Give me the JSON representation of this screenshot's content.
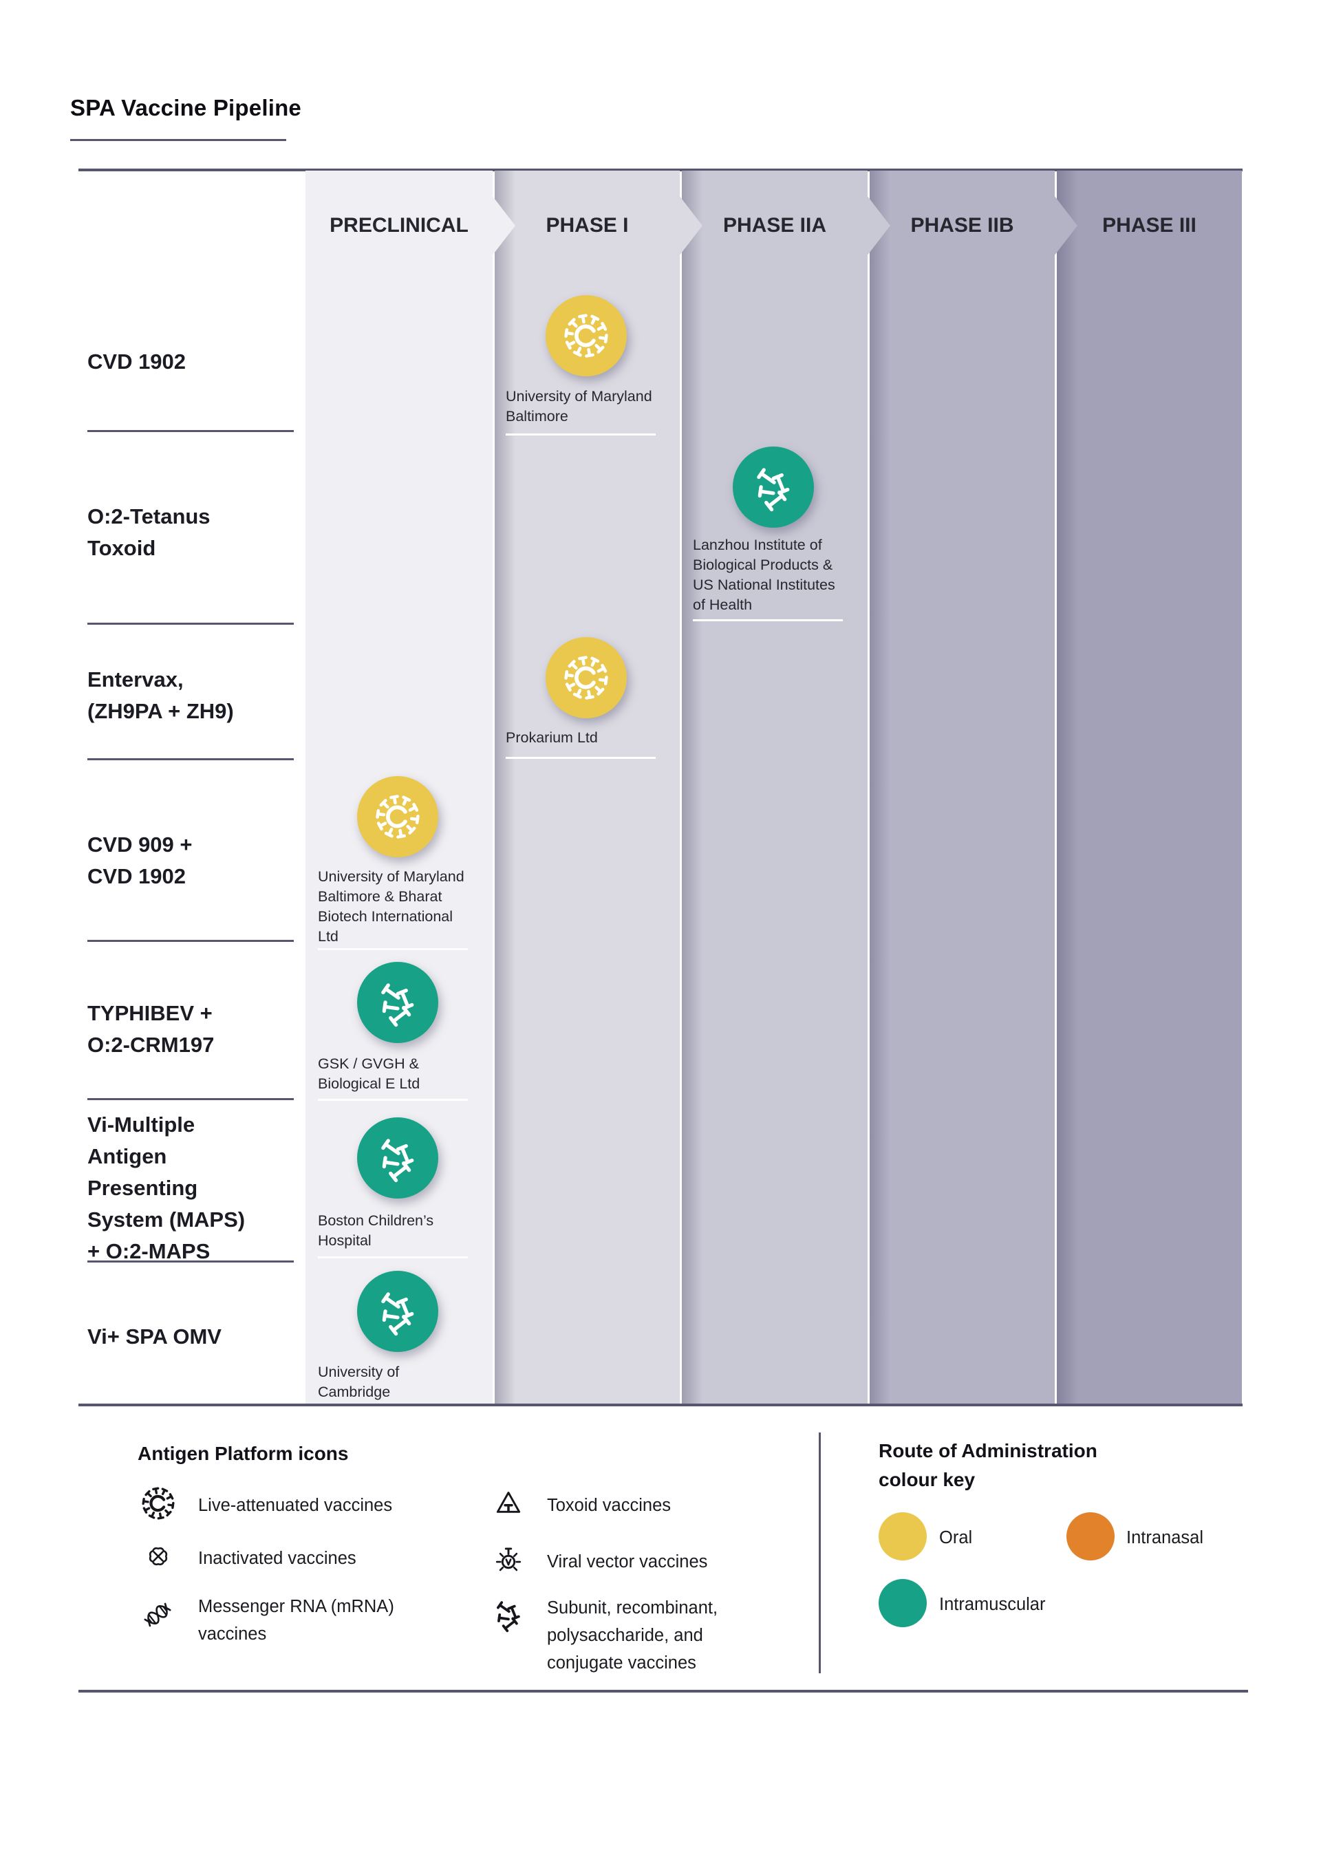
{
  "title": "SPA Vaccine Pipeline",
  "phases": [
    {
      "label": "PRECLINICAL",
      "color": "#F0EFF3"
    },
    {
      "label": "PHASE I",
      "color": "#DBDAE2"
    },
    {
      "label": "PHASE IIA",
      "color": "#C9C8D5"
    },
    {
      "label": "PHASE IIB",
      "color": "#B4B3C6"
    },
    {
      "label": "PHASE III",
      "color": "#A3A1B8"
    }
  ],
  "rows": [
    {
      "label": "CVD 1902",
      "phase": "PHASE I",
      "org": "University of Maryland\nBaltimore",
      "icon_kind": "virus",
      "icon_route": "oral"
    },
    {
      "label": "O:2-Tetanus\nToxoid",
      "phase": "PHASE IIA",
      "org": "Lanzhou Institute of\nBiological Products &\nUS National Institutes\nof Health",
      "icon_kind": "bones",
      "icon_route": "intramuscular"
    },
    {
      "label": "Entervax,\n(ZH9PA + ZH9)",
      "phase": "PHASE I",
      "org": "Prokarium Ltd",
      "icon_kind": "virus",
      "icon_route": "oral"
    },
    {
      "label": "CVD 909 +\nCVD 1902",
      "phase": "PRECLINICAL",
      "org": "University of Maryland\nBaltimore & Bharat\nBiotech International\nLtd",
      "icon_kind": "virus",
      "icon_route": "oral"
    },
    {
      "label": "TYPHIBEV +\nO:2-CRM197",
      "phase": "PRECLINICAL",
      "org": "GSK / GVGH &\nBiological E Ltd",
      "icon_kind": "bones",
      "icon_route": "intramuscular"
    },
    {
      "label": "Vi-Multiple\nAntigen\nPresenting\nSystem (MAPS)\n+ O:2-MAPS",
      "phase": "PRECLINICAL",
      "org": "Boston Children’s\nHospital",
      "icon_kind": "bones",
      "icon_route": "intramuscular"
    },
    {
      "label": "Vi+ SPA OMV",
      "phase": "PRECLINICAL",
      "org": "University of\nCambridge",
      "icon_kind": "bones",
      "icon_route": "intramuscular"
    }
  ],
  "antigen_legend": {
    "heading": "Antigen Platform icons",
    "items": [
      {
        "label": "Live-attenuated vaccines",
        "kind": "virus"
      },
      {
        "label": "Inactivated vaccines",
        "kind": "inactivated"
      },
      {
        "label": "Messenger RNA (mRNA)\nvaccines",
        "kind": "mrna"
      },
      {
        "label": "Toxoid vaccines",
        "kind": "toxoid"
      },
      {
        "label": "Viral vector vaccines",
        "kind": "vector"
      },
      {
        "label": "Subunit, recombinant,\npolysaccharide, and\nconjugate vaccines",
        "kind": "bones"
      }
    ]
  },
  "route_key": {
    "heading": "Route of Administration\ncolour key",
    "items": [
      {
        "label": "Oral",
        "route": "oral"
      },
      {
        "label": "Intranasal",
        "route": "intranasal"
      },
      {
        "label": "Intramuscular",
        "route": "intramuscular"
      }
    ]
  },
  "colors": {
    "routes": {
      "oral": "#EAC84D",
      "intranasal": "#E2822A",
      "intramuscular": "#17A186"
    },
    "rule": "#565670",
    "ink": "#1D1D26"
  }
}
